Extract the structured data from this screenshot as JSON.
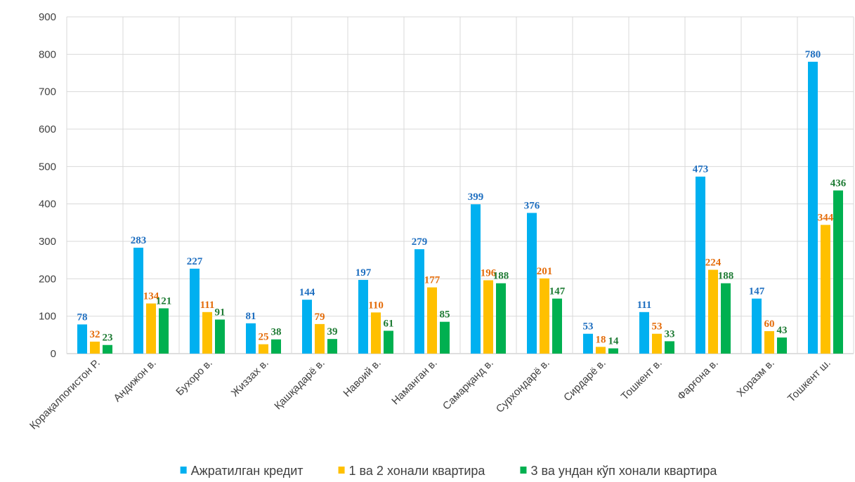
{
  "chart_data": {
    "type": "bar",
    "title": "",
    "xlabel": "",
    "ylabel": "",
    "ylim": [
      0,
      900
    ],
    "yticks": [
      0,
      100,
      200,
      300,
      400,
      500,
      600,
      700,
      800,
      900
    ],
    "grid": true,
    "legend_position": "bottom",
    "categories": [
      "Қорақалпоғистон Р.",
      "Андижон в.",
      "Бухоро в.",
      "Жиззах в.",
      "Қашқадарё в.",
      "Навоий в.",
      "Наманган в.",
      "Самарқанд в.",
      "Сурхондарё в.",
      "Сирдарё в.",
      "Тошкент в.",
      "Фарғона в.",
      "Хоразм в.",
      "Тошкент ш."
    ],
    "series": [
      {
        "name": "Ажратилган кредит",
        "color": "#00B0F0",
        "label_color": "#1F6FC0",
        "values": [
          78,
          283,
          227,
          81,
          144,
          197,
          279,
          399,
          376,
          53,
          111,
          473,
          147,
          780
        ]
      },
      {
        "name": "1 ва 2 хонали квартира",
        "color": "#FFC000",
        "label_color": "#E46C0A",
        "values": [
          32,
          134,
          111,
          25,
          79,
          110,
          177,
          196,
          201,
          18,
          53,
          224,
          60,
          344
        ]
      },
      {
        "name": "3 ва ундан кўп хонали квартира",
        "color": "#00B050",
        "label_color": "#1E7B34",
        "values": [
          23,
          121,
          91,
          38,
          39,
          61,
          85,
          188,
          147,
          14,
          33,
          188,
          43,
          436
        ]
      }
    ]
  }
}
